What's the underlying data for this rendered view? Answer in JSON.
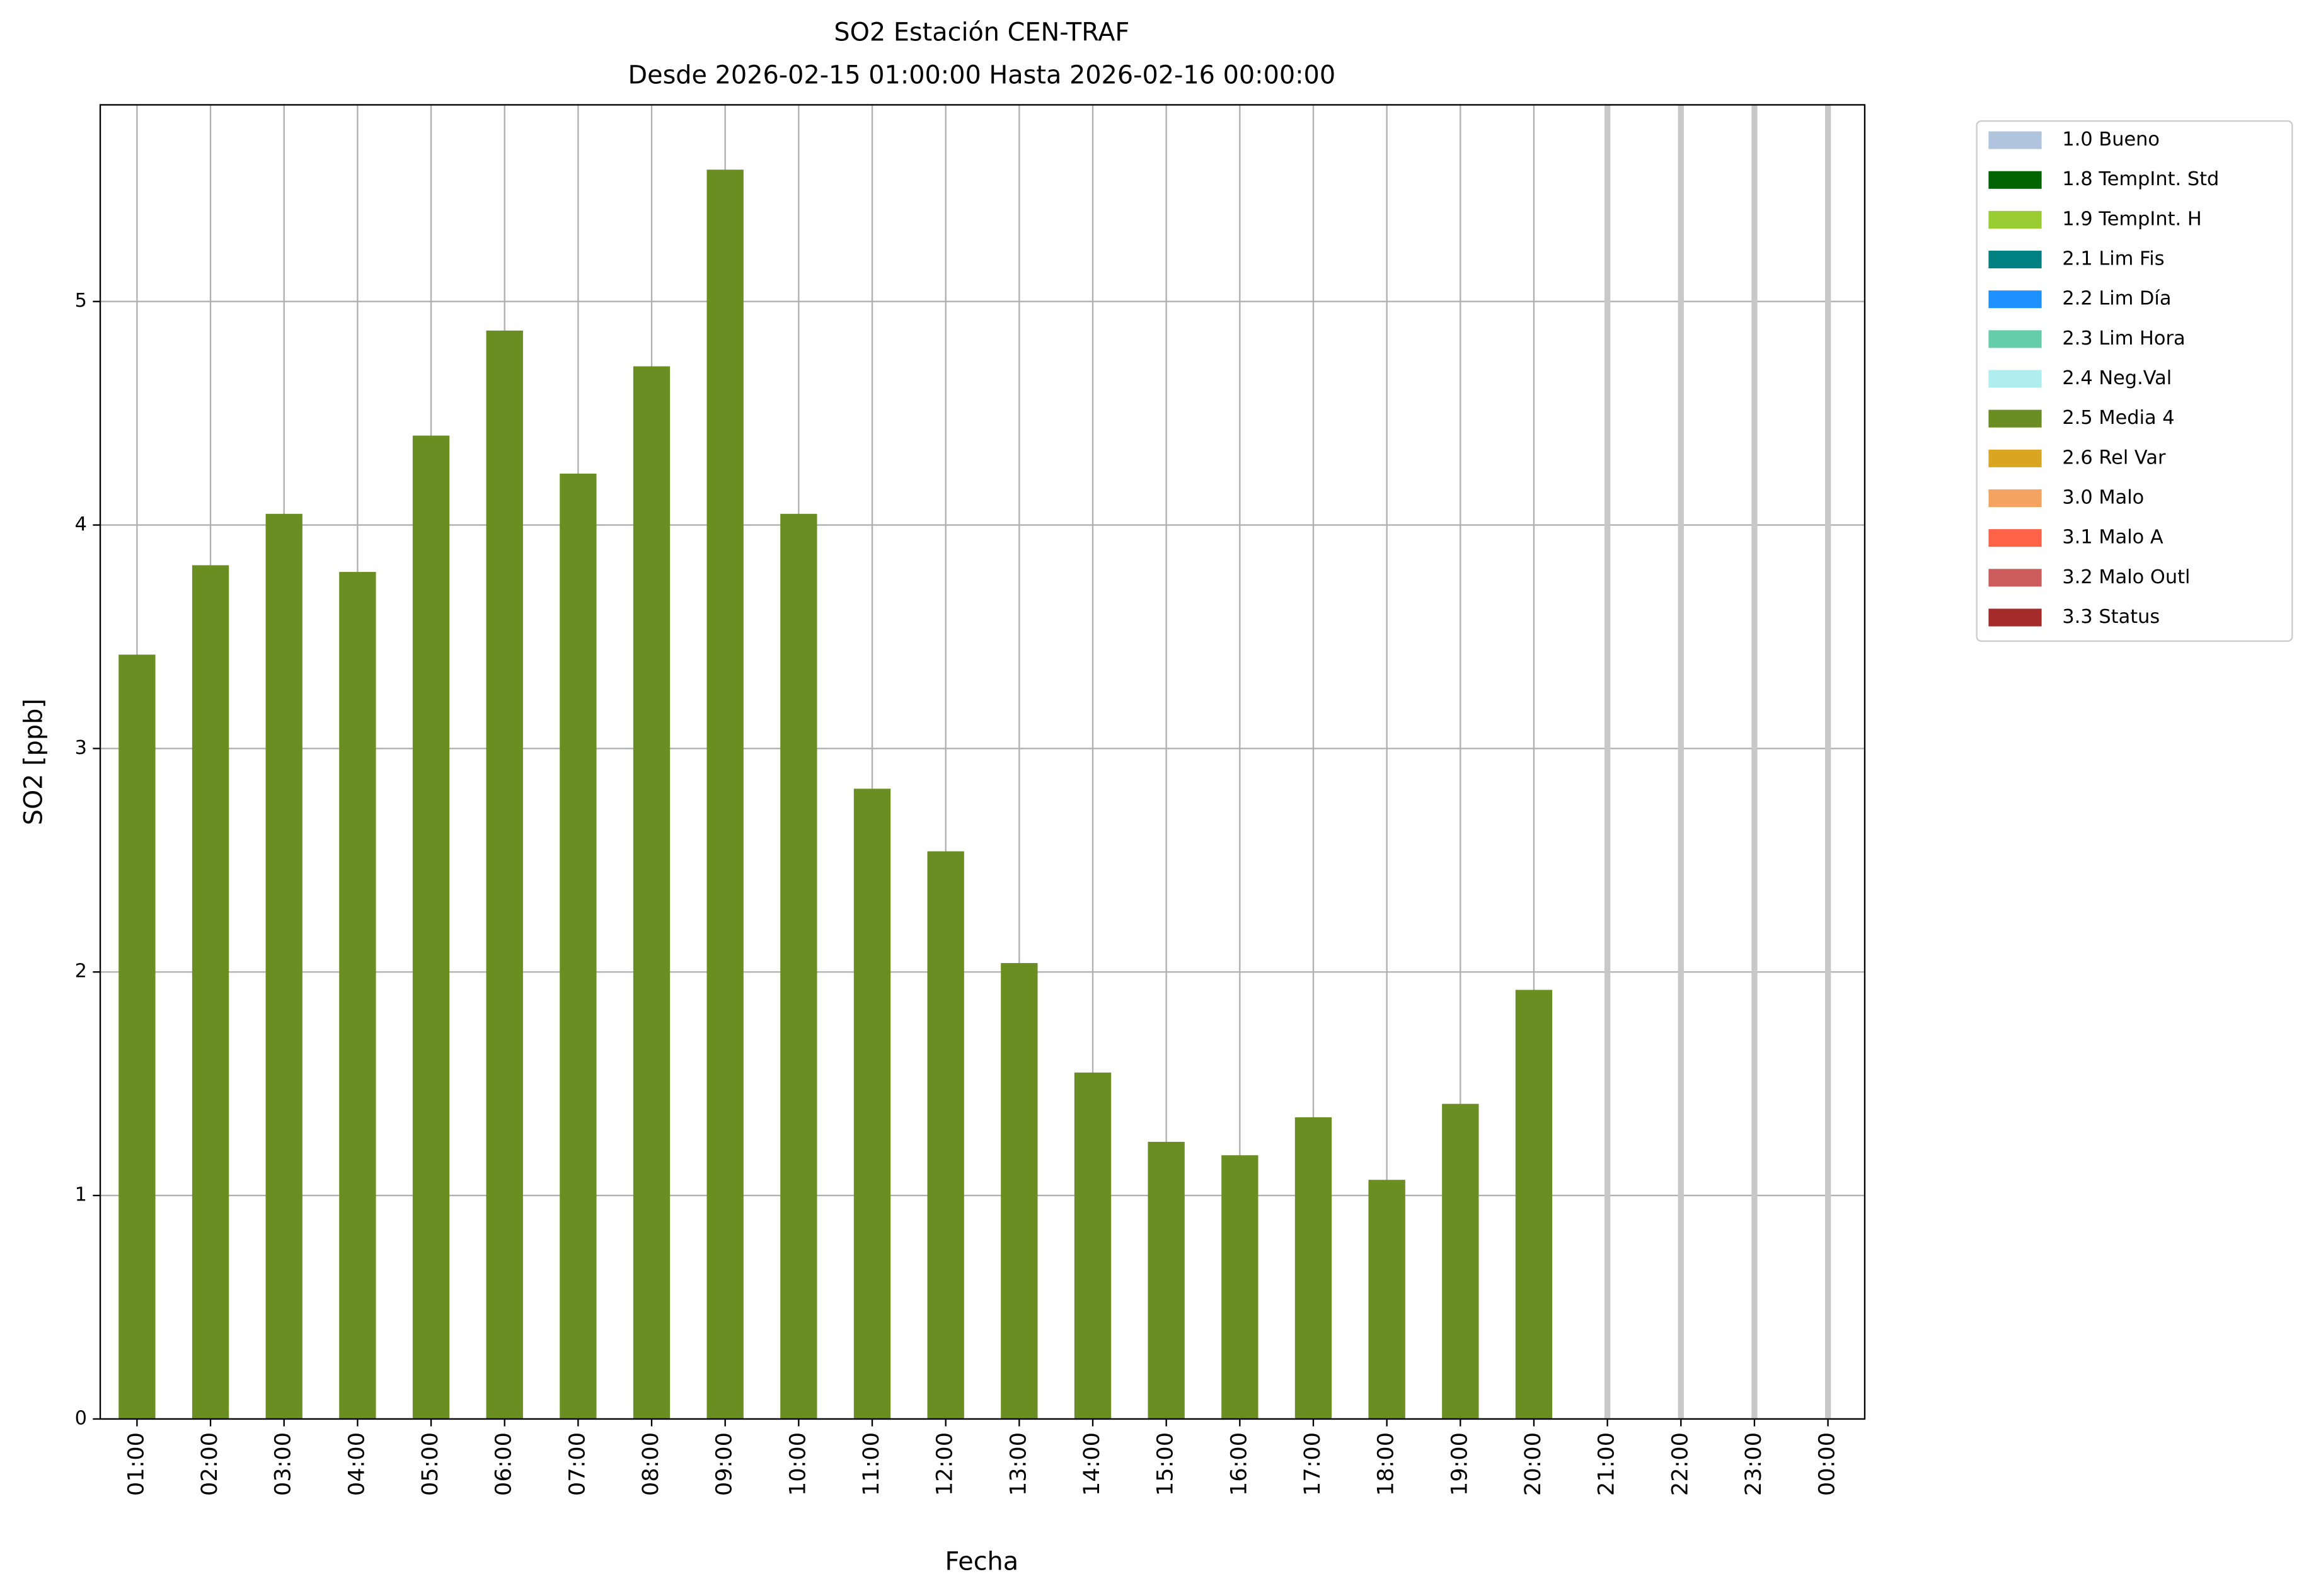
{
  "chart_data": {
    "type": "bar",
    "title": "SO2 Estación CEN-TRAF",
    "subtitle": "Desde 2026-02-15 01:00:00 Hasta 2026-02-16 00:00:00",
    "x_label": "Fecha",
    "y_label": "SO2 [ppb]",
    "categories": [
      "01:00",
      "02:00",
      "03:00",
      "04:00",
      "05:00",
      "06:00",
      "07:00",
      "08:00",
      "09:00",
      "10:00",
      "11:00",
      "12:00",
      "13:00",
      "14:00",
      "15:00",
      "16:00",
      "17:00",
      "18:00",
      "19:00",
      "20:00",
      "21:00",
      "22:00",
      "23:00",
      "00:00"
    ],
    "series": [
      {
        "name": "1.0 Bueno",
        "color": "#b0c4de",
        "values": [
          null,
          null,
          null,
          null,
          null,
          null,
          null,
          null,
          null,
          null,
          null,
          null,
          null,
          null,
          null,
          null,
          null,
          null,
          null,
          null,
          null,
          null,
          null,
          null
        ]
      },
      {
        "name": "1.8 TempInt. Std",
        "color": "#006400",
        "values": [
          null,
          null,
          null,
          null,
          null,
          null,
          null,
          null,
          null,
          null,
          null,
          null,
          null,
          null,
          null,
          null,
          null,
          null,
          null,
          null,
          null,
          null,
          null,
          null
        ]
      },
      {
        "name": "1.9 TempInt. H",
        "color": "#9acd32",
        "values": [
          null,
          null,
          null,
          null,
          null,
          null,
          null,
          null,
          null,
          null,
          null,
          null,
          null,
          null,
          null,
          null,
          null,
          null,
          null,
          null,
          null,
          null,
          null,
          null
        ]
      },
      {
        "name": "2.1 Lim Fis",
        "color": "#008080",
        "values": [
          null,
          null,
          null,
          null,
          null,
          null,
          null,
          null,
          null,
          null,
          null,
          null,
          null,
          null,
          null,
          null,
          null,
          null,
          null,
          null,
          null,
          null,
          null,
          null
        ]
      },
      {
        "name": "2.2 Lim Día",
        "color": "#1e90ff",
        "values": [
          null,
          null,
          null,
          null,
          null,
          null,
          null,
          null,
          null,
          null,
          null,
          null,
          null,
          null,
          null,
          null,
          null,
          null,
          null,
          null,
          null,
          null,
          null,
          null
        ]
      },
      {
        "name": "2.3 Lim Hora",
        "color": "#66cdaa",
        "values": [
          null,
          null,
          null,
          null,
          null,
          null,
          null,
          null,
          null,
          null,
          null,
          null,
          null,
          null,
          null,
          null,
          null,
          null,
          null,
          null,
          null,
          null,
          null,
          null
        ]
      },
      {
        "name": "2.4 Neg.Val",
        "color": "#afeeee",
        "values": [
          null,
          null,
          null,
          null,
          null,
          null,
          null,
          null,
          null,
          null,
          null,
          null,
          null,
          null,
          null,
          null,
          null,
          null,
          null,
          null,
          null,
          null,
          null,
          null
        ]
      },
      {
        "name": "2.5 Media 4",
        "color": "#6b8e23",
        "values": [
          3.42,
          3.82,
          4.05,
          3.79,
          4.4,
          4.87,
          4.23,
          4.71,
          5.59,
          4.05,
          2.82,
          2.54,
          2.04,
          1.55,
          1.24,
          1.18,
          1.35,
          1.07,
          1.41,
          1.92,
          null,
          null,
          null,
          null
        ]
      },
      {
        "name": "2.6 Rel Var",
        "color": "#daa520",
        "values": [
          null,
          null,
          null,
          null,
          null,
          null,
          null,
          null,
          null,
          null,
          null,
          null,
          null,
          null,
          null,
          null,
          null,
          null,
          null,
          null,
          null,
          null,
          null,
          null
        ]
      },
      {
        "name": "3.0 Malo",
        "color": "#f4a460",
        "values": [
          null,
          null,
          null,
          null,
          null,
          null,
          null,
          null,
          null,
          null,
          null,
          null,
          null,
          null,
          null,
          null,
          null,
          null,
          null,
          null,
          null,
          null,
          null,
          null
        ]
      },
      {
        "name": "3.1 Malo A",
        "color": "#ff6347",
        "values": [
          null,
          null,
          null,
          null,
          null,
          null,
          null,
          null,
          null,
          null,
          null,
          null,
          null,
          null,
          null,
          null,
          null,
          null,
          null,
          null,
          null,
          null,
          null,
          null
        ]
      },
      {
        "name": "3.2 Malo Outl",
        "color": "#cd5c5c",
        "values": [
          null,
          null,
          null,
          null,
          null,
          null,
          null,
          null,
          null,
          null,
          null,
          null,
          null,
          null,
          null,
          null,
          null,
          null,
          null,
          null,
          null,
          null,
          null,
          null
        ]
      },
      {
        "name": "3.3 Status",
        "color": "#a52a2a",
        "values": [
          null,
          null,
          null,
          null,
          null,
          null,
          null,
          null,
          null,
          null,
          null,
          null,
          null,
          null,
          null,
          null,
          null,
          null,
          null,
          null,
          null,
          null,
          null,
          null
        ]
      }
    ],
    "ylim": [
      0,
      5.88
    ],
    "yticks": [
      0,
      1,
      2,
      3,
      4,
      5
    ],
    "grid": true,
    "legend": "outside-upper-right"
  }
}
